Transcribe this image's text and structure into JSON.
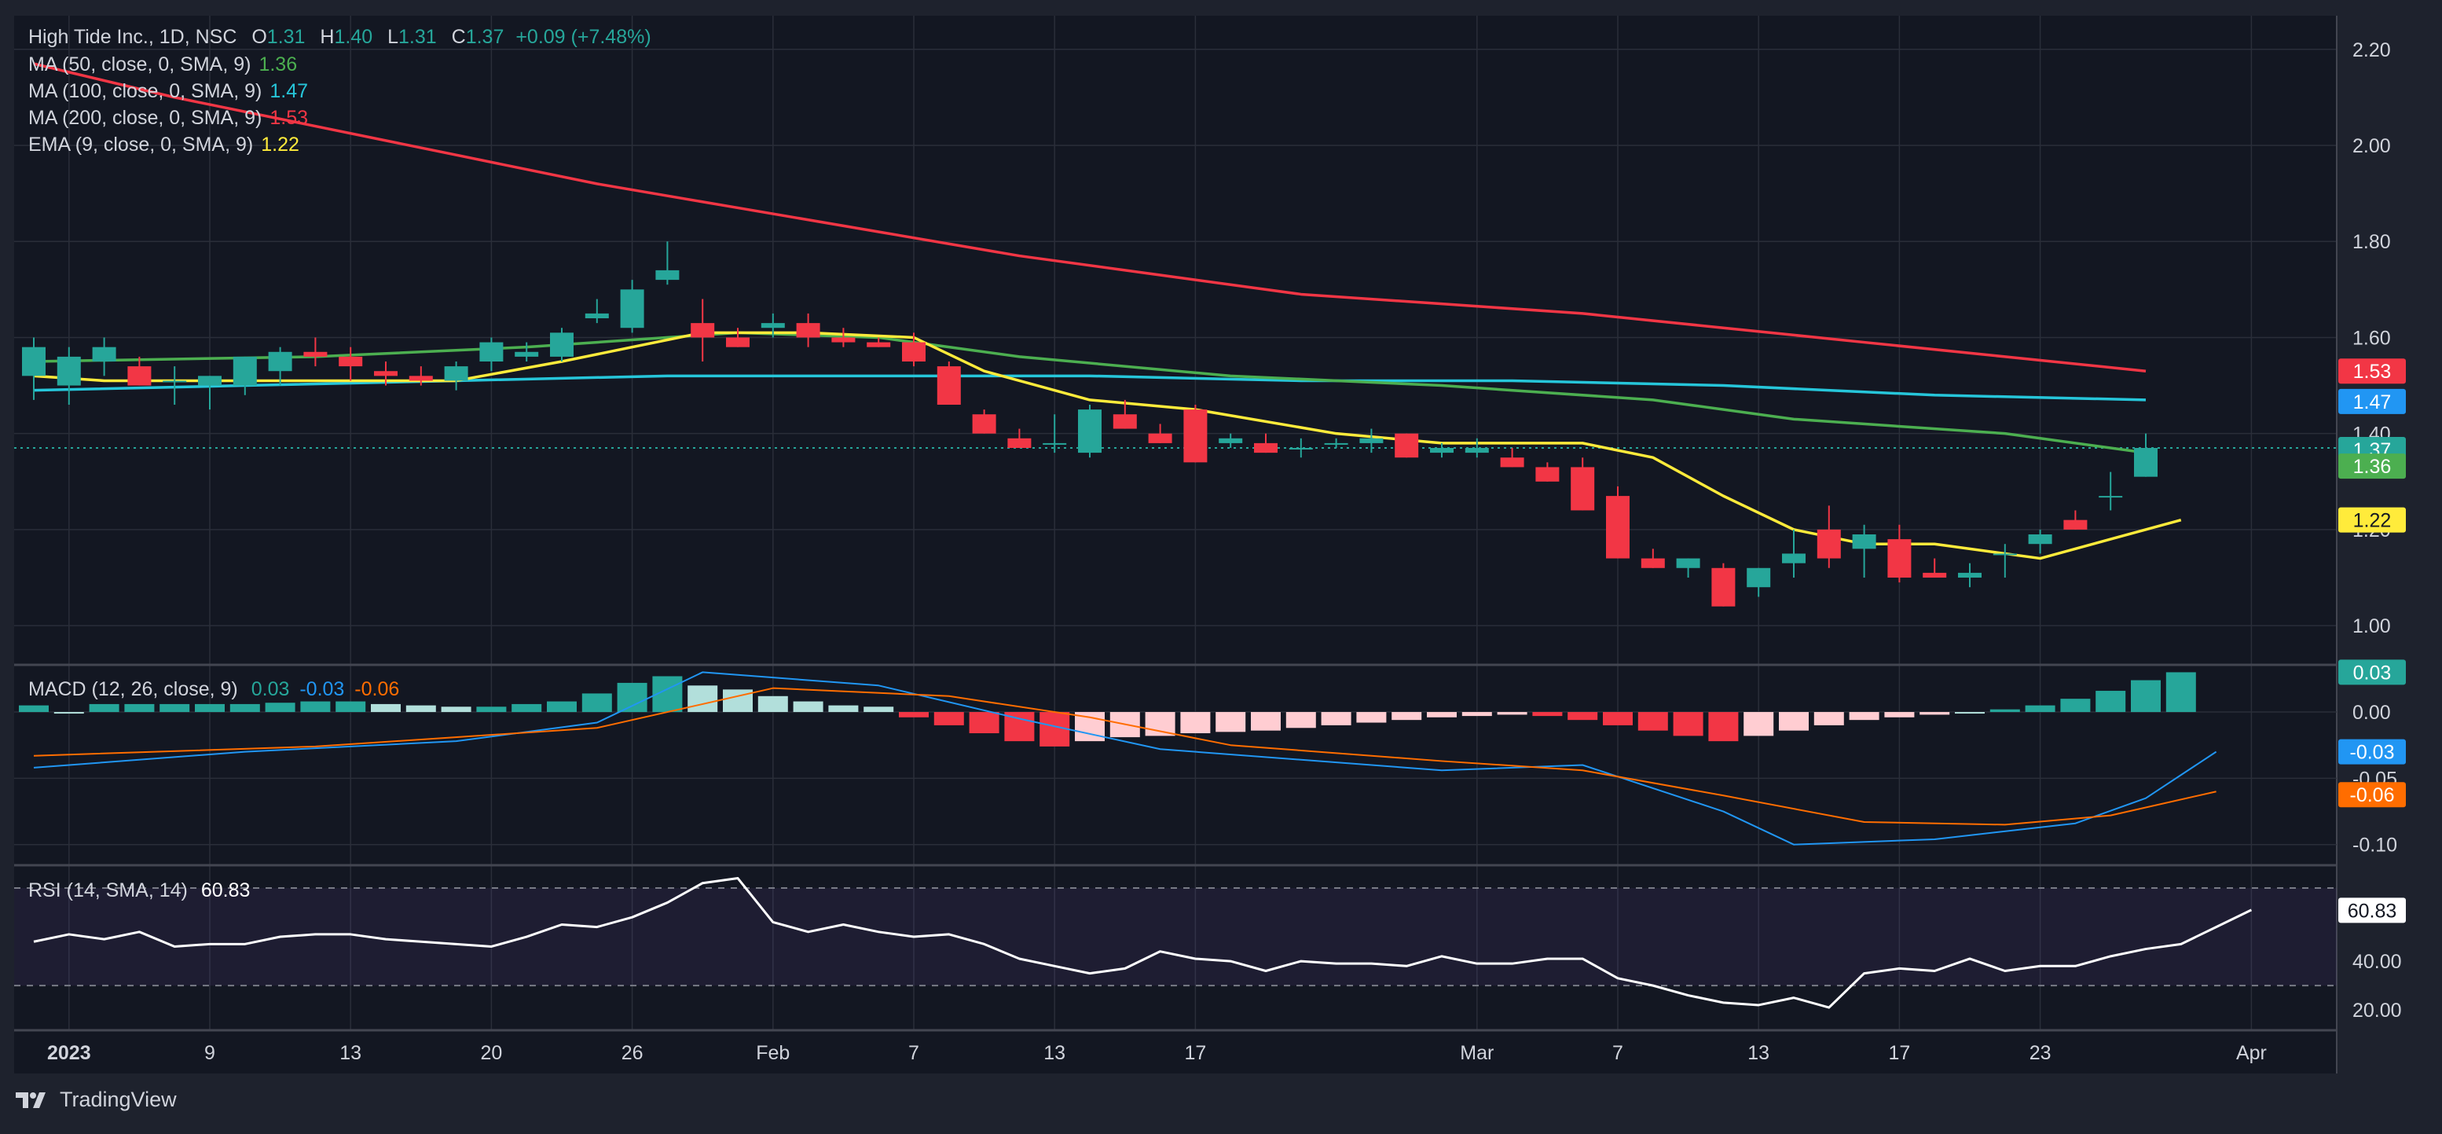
{
  "header": {
    "symbol_line": "High Tide Inc., 1D, NSC",
    "ohlc": [
      {
        "label": "O",
        "value": "1.31"
      },
      {
        "label": "H",
        "value": "1.40"
      },
      {
        "label": "L",
        "value": "1.31"
      },
      {
        "label": "C",
        "value": "1.37"
      }
    ],
    "change": "+0.09 (+7.48%)"
  },
  "indicators": [
    {
      "label": "MA (50, close, 0, SMA, 9)",
      "value": "1.36",
      "color": "#4caf50"
    },
    {
      "label": "MA (100, close, 0, SMA, 9)",
      "value": "1.47",
      "color": "#26c6da"
    },
    {
      "label": "MA (200, close, 0, SMA, 9)",
      "value": "1.53",
      "color": "#f23645"
    },
    {
      "label": "EMA (9, close, 0, SMA, 9)",
      "value": "1.22",
      "color": "#ffeb3b"
    }
  ],
  "macd_legend": {
    "label": "MACD (12, 26, close, 9)",
    "hist": "0.03",
    "macd": "-0.03",
    "signal": "-0.06"
  },
  "rsi_legend": {
    "label": "RSI (14, SMA, 14)",
    "value": "60.83"
  },
  "brand": "TradingView",
  "colors": {
    "up": "#26a69a",
    "down": "#f23645",
    "ma50": "#4caf50",
    "ma100": "#26c6da",
    "ma200": "#f23645",
    "ema9": "#ffeb3b",
    "macd": "#2196f3",
    "signal": "#ff6d00",
    "rsi": "#ffffff"
  },
  "chart_data": {
    "type": "candlestick",
    "price_axis": {
      "ticks": [
        "2.20",
        "2.00",
        "1.80",
        "1.60",
        "1.40",
        "1.20",
        "1.00"
      ],
      "ylim": [
        0.92,
        2.27
      ]
    },
    "time_axis": {
      "labels": [
        {
          "text": "2023",
          "index": 1
        },
        {
          "text": "9",
          "index": 5
        },
        {
          "text": "13",
          "index": 9
        },
        {
          "text": "20",
          "index": 13
        },
        {
          "text": "26",
          "index": 17
        },
        {
          "text": "Feb",
          "index": 21
        },
        {
          "text": "7",
          "index": 25
        },
        {
          "text": "13",
          "index": 29
        },
        {
          "text": "17",
          "index": 33
        },
        {
          "text": "Mar",
          "index": 41
        },
        {
          "text": "7",
          "index": 45
        },
        {
          "text": "13",
          "index": 49
        },
        {
          "text": "17",
          "index": 53
        },
        {
          "text": "23",
          "index": 57
        },
        {
          "text": "Apr",
          "index": 63
        }
      ]
    },
    "candles": [
      [
        1.52,
        1.6,
        1.47,
        1.58
      ],
      [
        1.5,
        1.58,
        1.46,
        1.56
      ],
      [
        1.55,
        1.6,
        1.52,
        1.58
      ],
      [
        1.54,
        1.56,
        1.5,
        1.5
      ],
      [
        1.51,
        1.54,
        1.46,
        1.51
      ],
      [
        1.5,
        1.52,
        1.45,
        1.52
      ],
      [
        1.5,
        1.56,
        1.48,
        1.56
      ],
      [
        1.53,
        1.58,
        1.5,
        1.57
      ],
      [
        1.57,
        1.6,
        1.54,
        1.56
      ],
      [
        1.56,
        1.58,
        1.51,
        1.54
      ],
      [
        1.53,
        1.55,
        1.5,
        1.52
      ],
      [
        1.52,
        1.54,
        1.5,
        1.51
      ],
      [
        1.51,
        1.55,
        1.49,
        1.54
      ],
      [
        1.55,
        1.6,
        1.53,
        1.59
      ],
      [
        1.56,
        1.59,
        1.55,
        1.57
      ],
      [
        1.56,
        1.62,
        1.55,
        1.61
      ],
      [
        1.64,
        1.68,
        1.63,
        1.65
      ],
      [
        1.62,
        1.72,
        1.61,
        1.7
      ],
      [
        1.72,
        1.8,
        1.71,
        1.74
      ],
      [
        1.63,
        1.68,
        1.55,
        1.6
      ],
      [
        1.6,
        1.62,
        1.58,
        1.58
      ],
      [
        1.62,
        1.65,
        1.6,
        1.63
      ],
      [
        1.63,
        1.65,
        1.58,
        1.6
      ],
      [
        1.6,
        1.62,
        1.58,
        1.59
      ],
      [
        1.59,
        1.6,
        1.58,
        1.58
      ],
      [
        1.59,
        1.61,
        1.54,
        1.55
      ],
      [
        1.54,
        1.55,
        1.46,
        1.46
      ],
      [
        1.44,
        1.45,
        1.4,
        1.4
      ],
      [
        1.39,
        1.41,
        1.37,
        1.37
      ],
      [
        1.38,
        1.44,
        1.36,
        1.38
      ],
      [
        1.36,
        1.46,
        1.35,
        1.45
      ],
      [
        1.44,
        1.47,
        1.41,
        1.41
      ],
      [
        1.4,
        1.42,
        1.38,
        1.38
      ],
      [
        1.45,
        1.46,
        1.34,
        1.34
      ],
      [
        1.38,
        1.4,
        1.37,
        1.39
      ],
      [
        1.38,
        1.4,
        1.36,
        1.36
      ],
      [
        1.37,
        1.39,
        1.35,
        1.37
      ],
      [
        1.38,
        1.39,
        1.37,
        1.38
      ],
      [
        1.38,
        1.41,
        1.36,
        1.39
      ],
      [
        1.4,
        1.4,
        1.35,
        1.35
      ],
      [
        1.36,
        1.38,
        1.35,
        1.37
      ],
      [
        1.36,
        1.39,
        1.35,
        1.37
      ],
      [
        1.35,
        1.37,
        1.33,
        1.33
      ],
      [
        1.33,
        1.34,
        1.3,
        1.3
      ],
      [
        1.33,
        1.35,
        1.24,
        1.24
      ],
      [
        1.27,
        1.29,
        1.14,
        1.14
      ],
      [
        1.14,
        1.16,
        1.12,
        1.12
      ],
      [
        1.12,
        1.14,
        1.1,
        1.14
      ],
      [
        1.12,
        1.13,
        1.04,
        1.04
      ],
      [
        1.08,
        1.12,
        1.06,
        1.12
      ],
      [
        1.13,
        1.2,
        1.1,
        1.15
      ],
      [
        1.2,
        1.25,
        1.12,
        1.14
      ],
      [
        1.16,
        1.21,
        1.1,
        1.19
      ],
      [
        1.18,
        1.21,
        1.09,
        1.1
      ],
      [
        1.11,
        1.14,
        1.1,
        1.1
      ],
      [
        1.1,
        1.13,
        1.08,
        1.11
      ],
      [
        1.15,
        1.17,
        1.1,
        1.15
      ],
      [
        1.17,
        1.2,
        1.15,
        1.19
      ],
      [
        1.22,
        1.24,
        1.2,
        1.2
      ],
      [
        1.27,
        1.32,
        1.24,
        1.27
      ],
      [
        1.31,
        1.4,
        1.31,
        1.37
      ]
    ],
    "ma200": [
      [
        0,
        2.17
      ],
      [
        4,
        2.1
      ],
      [
        8,
        2.04
      ],
      [
        12,
        1.98
      ],
      [
        16,
        1.92
      ],
      [
        20,
        1.87
      ],
      [
        24,
        1.82
      ],
      [
        28,
        1.77
      ],
      [
        32,
        1.73
      ],
      [
        36,
        1.69
      ],
      [
        40,
        1.67
      ],
      [
        44,
        1.65
      ],
      [
        48,
        1.62
      ],
      [
        52,
        1.59
      ],
      [
        56,
        1.56
      ],
      [
        60,
        1.53
      ]
    ],
    "ma100": [
      [
        0,
        1.49
      ],
      [
        6,
        1.5
      ],
      [
        12,
        1.51
      ],
      [
        18,
        1.52
      ],
      [
        24,
        1.52
      ],
      [
        30,
        1.52
      ],
      [
        36,
        1.51
      ],
      [
        42,
        1.51
      ],
      [
        48,
        1.5
      ],
      [
        54,
        1.48
      ],
      [
        60,
        1.47
      ]
    ],
    "ma50": [
      [
        0,
        1.55
      ],
      [
        8,
        1.56
      ],
      [
        14,
        1.58
      ],
      [
        20,
        1.61
      ],
      [
        24,
        1.6
      ],
      [
        28,
        1.56
      ],
      [
        34,
        1.52
      ],
      [
        40,
        1.5
      ],
      [
        46,
        1.47
      ],
      [
        50,
        1.43
      ],
      [
        56,
        1.4
      ],
      [
        60,
        1.36
      ]
    ],
    "ema9": [
      [
        0,
        1.52
      ],
      [
        2,
        1.51
      ],
      [
        5,
        1.51
      ],
      [
        9,
        1.51
      ],
      [
        12,
        1.51
      ],
      [
        15,
        1.55
      ],
      [
        19,
        1.61
      ],
      [
        22,
        1.61
      ],
      [
        25,
        1.6
      ],
      [
        27,
        1.53
      ],
      [
        30,
        1.47
      ],
      [
        33,
        1.45
      ],
      [
        37,
        1.4
      ],
      [
        40,
        1.38
      ],
      [
        44,
        1.38
      ],
      [
        46,
        1.35
      ],
      [
        48,
        1.27
      ],
      [
        50,
        1.2
      ],
      [
        52,
        1.17
      ],
      [
        54,
        1.17
      ],
      [
        56,
        1.15
      ],
      [
        57,
        1.14
      ],
      [
        59,
        1.18
      ],
      [
        61,
        1.22
      ]
    ],
    "macd": {
      "ticks": [
        "0.00",
        "-0.05",
        "-0.10"
      ],
      "ylim": [
        -0.115,
        0.035
      ],
      "histogram": [
        0.005,
        0.0,
        0.006,
        0.006,
        0.006,
        0.006,
        0.006,
        0.007,
        0.008,
        0.008,
        0.006,
        0.005,
        0.004,
        0.004,
        0.006,
        0.008,
        0.014,
        0.022,
        0.027,
        0.02,
        0.017,
        0.012,
        0.008,
        0.005,
        0.004,
        -0.004,
        -0.01,
        -0.016,
        -0.022,
        -0.026,
        -0.022,
        -0.019,
        -0.018,
        -0.016,
        -0.015,
        -0.014,
        -0.012,
        -0.01,
        -0.008,
        -0.006,
        -0.004,
        -0.003,
        -0.002,
        -0.003,
        -0.006,
        -0.01,
        -0.014,
        -0.018,
        -0.022,
        -0.018,
        -0.014,
        -0.01,
        -0.006,
        -0.004,
        -0.002,
        0.0,
        0.002,
        0.005,
        0.01,
        0.016,
        0.024,
        0.03
      ],
      "macd_line": [
        [
          0,
          -0.042
        ],
        [
          6,
          -0.03
        ],
        [
          12,
          -0.022
        ],
        [
          16,
          -0.008
        ],
        [
          19,
          0.03
        ],
        [
          24,
          0.02
        ],
        [
          28,
          -0.005
        ],
        [
          32,
          -0.028
        ],
        [
          40,
          -0.044
        ],
        [
          44,
          -0.04
        ],
        [
          48,
          -0.075
        ],
        [
          50,
          -0.1
        ],
        [
          54,
          -0.096
        ],
        [
          58,
          -0.084
        ],
        [
          60,
          -0.065
        ],
        [
          62,
          -0.03
        ]
      ],
      "signal_line": [
        [
          0,
          -0.033
        ],
        [
          8,
          -0.026
        ],
        [
          16,
          -0.012
        ],
        [
          21,
          0.018
        ],
        [
          26,
          0.012
        ],
        [
          30,
          -0.004
        ],
        [
          34,
          -0.025
        ],
        [
          40,
          -0.037
        ],
        [
          44,
          -0.044
        ],
        [
          48,
          -0.063
        ],
        [
          52,
          -0.083
        ],
        [
          56,
          -0.085
        ],
        [
          59,
          -0.078
        ],
        [
          62,
          -0.06
        ]
      ]
    },
    "rsi": {
      "ticks": [
        "40.00",
        "20.00"
      ],
      "ylim": [
        12,
        79
      ],
      "bands": [
        70,
        30
      ],
      "values": [
        [
          0,
          48
        ],
        [
          1,
          51
        ],
        [
          2,
          49
        ],
        [
          3,
          52
        ],
        [
          4,
          46
        ],
        [
          5,
          47
        ],
        [
          6,
          47
        ],
        [
          7,
          50
        ],
        [
          8,
          51
        ],
        [
          9,
          51
        ],
        [
          10,
          49
        ],
        [
          11,
          48
        ],
        [
          12,
          47
        ],
        [
          13,
          46
        ],
        [
          14,
          50
        ],
        [
          15,
          55
        ],
        [
          16,
          54
        ],
        [
          17,
          58
        ],
        [
          18,
          64
        ],
        [
          19,
          72
        ],
        [
          20,
          74
        ],
        [
          21,
          56
        ],
        [
          22,
          52
        ],
        [
          23,
          55
        ],
        [
          24,
          52
        ],
        [
          25,
          50
        ],
        [
          26,
          51
        ],
        [
          27,
          47
        ],
        [
          28,
          41
        ],
        [
          29,
          38
        ],
        [
          30,
          35
        ],
        [
          31,
          37
        ],
        [
          32,
          44
        ],
        [
          33,
          41
        ],
        [
          34,
          40
        ],
        [
          35,
          36
        ],
        [
          36,
          40
        ],
        [
          37,
          39
        ],
        [
          38,
          39
        ],
        [
          39,
          38
        ],
        [
          40,
          42
        ],
        [
          41,
          39
        ],
        [
          42,
          39
        ],
        [
          43,
          41
        ],
        [
          44,
          41
        ],
        [
          45,
          33
        ],
        [
          46,
          30
        ],
        [
          47,
          26
        ],
        [
          48,
          23
        ],
        [
          49,
          22
        ],
        [
          50,
          25
        ],
        [
          51,
          21
        ],
        [
          52,
          35
        ],
        [
          53,
          37
        ],
        [
          54,
          36
        ],
        [
          55,
          41
        ],
        [
          56,
          36
        ],
        [
          57,
          38
        ],
        [
          58,
          38
        ],
        [
          59,
          42
        ],
        [
          60,
          45
        ],
        [
          61,
          47
        ],
        [
          62,
          54
        ],
        [
          63,
          61
        ]
      ]
    }
  }
}
